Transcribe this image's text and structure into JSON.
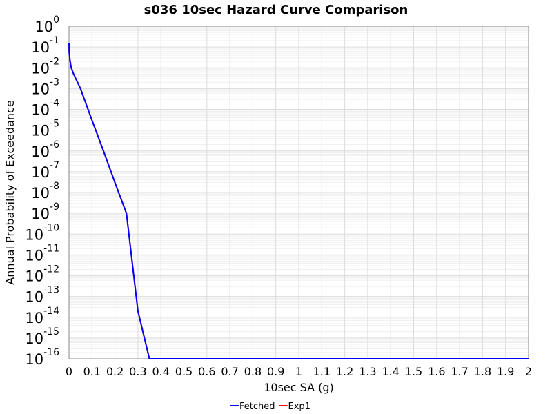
{
  "chart_data": {
    "type": "line",
    "title": "s036 10sec Hazard Curve Comparison",
    "xlabel": "10sec SA (g)",
    "ylabel": "Annual Probability of Exceedance",
    "xlim": [
      0,
      2
    ],
    "ylim": [
      1e-16,
      1
    ],
    "yscale": "log",
    "grid": true,
    "legend_placement": "bottom-center",
    "x_ticks": [
      "0",
      "0.1",
      "0.2",
      "0.3",
      "0.4",
      "0.5",
      "0.6",
      "0.7",
      "0.8",
      "0.9",
      "1",
      "1.1",
      "1.2",
      "1.3",
      "1.4",
      "1.5",
      "1.6",
      "1.7",
      "1.8",
      "1.9",
      "2"
    ],
    "y_ticks": [
      {
        "base": "10",
        "exp": "0"
      },
      {
        "base": "10",
        "exp": "-1"
      },
      {
        "base": "10",
        "exp": "-2"
      },
      {
        "base": "10",
        "exp": "-3"
      },
      {
        "base": "10",
        "exp": "-4"
      },
      {
        "base": "10",
        "exp": "-5"
      },
      {
        "base": "10",
        "exp": "-6"
      },
      {
        "base": "10",
        "exp": "-7"
      },
      {
        "base": "10",
        "exp": "-8"
      },
      {
        "base": "10",
        "exp": "-9"
      },
      {
        "base": "10",
        "exp": "-10"
      },
      {
        "base": "10",
        "exp": "-11"
      },
      {
        "base": "10",
        "exp": "-12"
      },
      {
        "base": "10",
        "exp": "-13"
      },
      {
        "base": "10",
        "exp": "-14"
      },
      {
        "base": "10",
        "exp": "-15"
      },
      {
        "base": "10",
        "exp": "-16"
      }
    ],
    "series": [
      {
        "name": "Fetched",
        "color": "#0000ff",
        "x": [
          0.0001,
          0.001,
          0.005,
          0.01,
          0.02,
          0.05,
          0.1,
          0.15,
          0.2,
          0.25,
          0.3,
          0.35,
          0.4,
          2
        ],
        "y": [
          0.15,
          0.05,
          0.02,
          0.01,
          0.005,
          0.001,
          3e-05,
          1e-06,
          3e-08,
          1e-09,
          2e-14,
          1e-16,
          1e-16,
          1e-16
        ]
      },
      {
        "name": "Exp1",
        "color": "#ff0000",
        "x": [
          0.0001,
          0.001,
          0.005,
          0.01,
          0.02,
          0.05,
          0.1,
          0.15,
          0.2,
          0.25,
          0.3,
          0.35,
          0.4,
          2
        ],
        "y": [
          0.15,
          0.05,
          0.02,
          0.01,
          0.005,
          0.001,
          3e-05,
          1e-06,
          3e-08,
          1e-09,
          2e-14,
          1e-16,
          1e-16,
          1e-16
        ]
      }
    ]
  }
}
